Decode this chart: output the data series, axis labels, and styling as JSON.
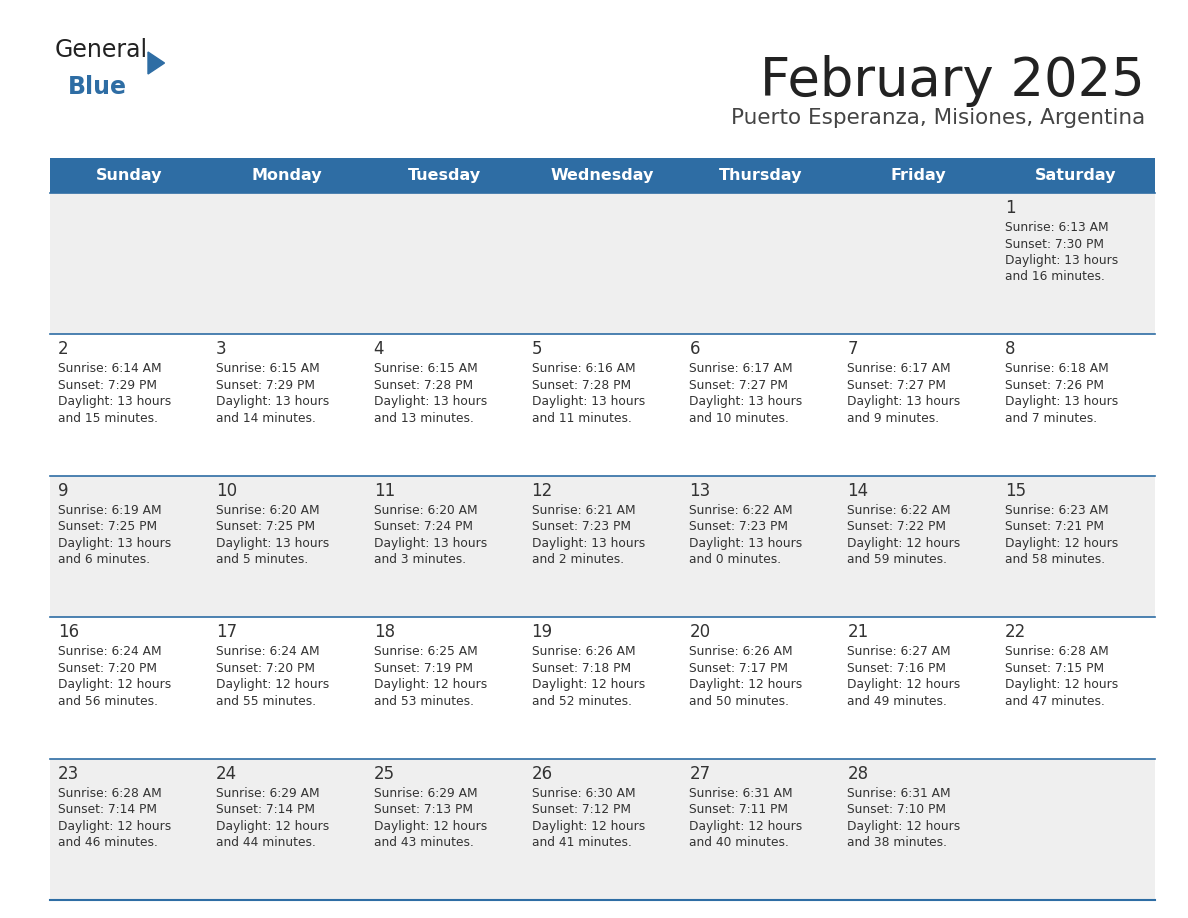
{
  "title": "February 2025",
  "subtitle": "Puerto Esperanza, Misiones, Argentina",
  "header_bg_color": "#2E6DA4",
  "header_text_color": "#FFFFFF",
  "day_names": [
    "Sunday",
    "Monday",
    "Tuesday",
    "Wednesday",
    "Thursday",
    "Friday",
    "Saturday"
  ],
  "row_bg_even": "#EFEFEF",
  "row_bg_odd": "#FFFFFF",
  "cell_text_color": "#333333",
  "day_num_color": "#333333",
  "divider_color": "#2E6DA4",
  "logo_general_color": "#222222",
  "logo_blue_color": "#2E6DA4",
  "weeks": [
    [
      {
        "day": null,
        "sunrise": null,
        "sunset": null,
        "daylight": null
      },
      {
        "day": null,
        "sunrise": null,
        "sunset": null,
        "daylight": null
      },
      {
        "day": null,
        "sunrise": null,
        "sunset": null,
        "daylight": null
      },
      {
        "day": null,
        "sunrise": null,
        "sunset": null,
        "daylight": null
      },
      {
        "day": null,
        "sunrise": null,
        "sunset": null,
        "daylight": null
      },
      {
        "day": null,
        "sunrise": null,
        "sunset": null,
        "daylight": null
      },
      {
        "day": 1,
        "sunrise": "6:13 AM",
        "sunset": "7:30 PM",
        "daylight": "13 hours and 16 minutes."
      }
    ],
    [
      {
        "day": 2,
        "sunrise": "6:14 AM",
        "sunset": "7:29 PM",
        "daylight": "13 hours and 15 minutes."
      },
      {
        "day": 3,
        "sunrise": "6:15 AM",
        "sunset": "7:29 PM",
        "daylight": "13 hours and 14 minutes."
      },
      {
        "day": 4,
        "sunrise": "6:15 AM",
        "sunset": "7:28 PM",
        "daylight": "13 hours and 13 minutes."
      },
      {
        "day": 5,
        "sunrise": "6:16 AM",
        "sunset": "7:28 PM",
        "daylight": "13 hours and 11 minutes."
      },
      {
        "day": 6,
        "sunrise": "6:17 AM",
        "sunset": "7:27 PM",
        "daylight": "13 hours and 10 minutes."
      },
      {
        "day": 7,
        "sunrise": "6:17 AM",
        "sunset": "7:27 PM",
        "daylight": "13 hours and 9 minutes."
      },
      {
        "day": 8,
        "sunrise": "6:18 AM",
        "sunset": "7:26 PM",
        "daylight": "13 hours and 7 minutes."
      }
    ],
    [
      {
        "day": 9,
        "sunrise": "6:19 AM",
        "sunset": "7:25 PM",
        "daylight": "13 hours and 6 minutes."
      },
      {
        "day": 10,
        "sunrise": "6:20 AM",
        "sunset": "7:25 PM",
        "daylight": "13 hours and 5 minutes."
      },
      {
        "day": 11,
        "sunrise": "6:20 AM",
        "sunset": "7:24 PM",
        "daylight": "13 hours and 3 minutes."
      },
      {
        "day": 12,
        "sunrise": "6:21 AM",
        "sunset": "7:23 PM",
        "daylight": "13 hours and 2 minutes."
      },
      {
        "day": 13,
        "sunrise": "6:22 AM",
        "sunset": "7:23 PM",
        "daylight": "13 hours and 0 minutes."
      },
      {
        "day": 14,
        "sunrise": "6:22 AM",
        "sunset": "7:22 PM",
        "daylight": "12 hours and 59 minutes."
      },
      {
        "day": 15,
        "sunrise": "6:23 AM",
        "sunset": "7:21 PM",
        "daylight": "12 hours and 58 minutes."
      }
    ],
    [
      {
        "day": 16,
        "sunrise": "6:24 AM",
        "sunset": "7:20 PM",
        "daylight": "12 hours and 56 minutes."
      },
      {
        "day": 17,
        "sunrise": "6:24 AM",
        "sunset": "7:20 PM",
        "daylight": "12 hours and 55 minutes."
      },
      {
        "day": 18,
        "sunrise": "6:25 AM",
        "sunset": "7:19 PM",
        "daylight": "12 hours and 53 minutes."
      },
      {
        "day": 19,
        "sunrise": "6:26 AM",
        "sunset": "7:18 PM",
        "daylight": "12 hours and 52 minutes."
      },
      {
        "day": 20,
        "sunrise": "6:26 AM",
        "sunset": "7:17 PM",
        "daylight": "12 hours and 50 minutes."
      },
      {
        "day": 21,
        "sunrise": "6:27 AM",
        "sunset": "7:16 PM",
        "daylight": "12 hours and 49 minutes."
      },
      {
        "day": 22,
        "sunrise": "6:28 AM",
        "sunset": "7:15 PM",
        "daylight": "12 hours and 47 minutes."
      }
    ],
    [
      {
        "day": 23,
        "sunrise": "6:28 AM",
        "sunset": "7:14 PM",
        "daylight": "12 hours and 46 minutes."
      },
      {
        "day": 24,
        "sunrise": "6:29 AM",
        "sunset": "7:14 PM",
        "daylight": "12 hours and 44 minutes."
      },
      {
        "day": 25,
        "sunrise": "6:29 AM",
        "sunset": "7:13 PM",
        "daylight": "12 hours and 43 minutes."
      },
      {
        "day": 26,
        "sunrise": "6:30 AM",
        "sunset": "7:12 PM",
        "daylight": "12 hours and 41 minutes."
      },
      {
        "day": 27,
        "sunrise": "6:31 AM",
        "sunset": "7:11 PM",
        "daylight": "12 hours and 40 minutes."
      },
      {
        "day": 28,
        "sunrise": "6:31 AM",
        "sunset": "7:10 PM",
        "daylight": "12 hours and 38 minutes."
      },
      {
        "day": null,
        "sunrise": null,
        "sunset": null,
        "daylight": null
      }
    ]
  ]
}
